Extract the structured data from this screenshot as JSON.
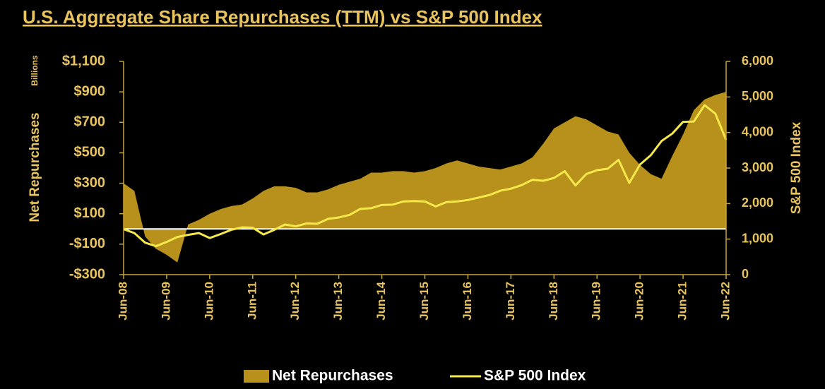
{
  "chart_data": {
    "type": "line",
    "title": "U.S. Aggregate Share Repurchases (TTM) vs S&P 500 Index",
    "ylabel": "Net Repurchases",
    "yunit": "Billions",
    "y2label": "S&P 500 Index",
    "categories": [
      "Jun-08",
      null,
      null,
      null,
      "Jun-09",
      null,
      null,
      null,
      "Jun-10",
      null,
      null,
      null,
      "Jun-11",
      null,
      null,
      null,
      "Jun-12",
      null,
      null,
      null,
      "Jun-13",
      null,
      null,
      null,
      "Jun-14",
      null,
      null,
      null,
      "Jun-15",
      null,
      null,
      null,
      "Jun-16",
      null,
      null,
      null,
      "Jun-17",
      null,
      null,
      null,
      "Jun-18",
      null,
      null,
      null,
      "Jun-19",
      null,
      null,
      null,
      "Jun-20",
      null,
      null,
      null,
      "Jun-21",
      null,
      null,
      null,
      "Jun-22"
    ],
    "series": [
      {
        "name": "Net Repurchases",
        "type": "area",
        "color": "#b8901c",
        "values": [
          300,
          250,
          -50,
          -130,
          -170,
          -220,
          30,
          60,
          100,
          130,
          150,
          160,
          200,
          250,
          280,
          280,
          270,
          240,
          240,
          260,
          290,
          310,
          330,
          370,
          370,
          380,
          380,
          370,
          380,
          400,
          430,
          450,
          430,
          410,
          400,
          390,
          410,
          430,
          470,
          560,
          660,
          700,
          740,
          720,
          680,
          640,
          620,
          500,
          420,
          360,
          330,
          480,
          620,
          780,
          850,
          880,
          900
        ]
      },
      {
        "name": "S&P 500 Index",
        "type": "line",
        "axis": "y2",
        "color": "#f5e84a",
        "values": [
          1280,
          1170,
          900,
          800,
          920,
          1060,
          1120,
          1170,
          1030,
          1140,
          1260,
          1330,
          1320,
          1130,
          1260,
          1410,
          1360,
          1440,
          1430,
          1570,
          1610,
          1680,
          1850,
          1870,
          1960,
          1970,
          2060,
          2070,
          2060,
          1920,
          2040,
          2060,
          2100,
          2170,
          2240,
          2360,
          2420,
          2520,
          2670,
          2640,
          2720,
          2910,
          2510,
          2830,
          2940,
          2980,
          3230,
          2580,
          3100,
          3360,
          3760,
          3970,
          4300,
          4310,
          4770,
          4530,
          3790
        ]
      }
    ],
    "ylim": [
      -300,
      1100
    ],
    "yticks": [
      {
        "value": 1100,
        "label": "$1,100"
      },
      {
        "value": 900,
        "label": "$900"
      },
      {
        "value": 700,
        "label": "$700"
      },
      {
        "value": 500,
        "label": "$500"
      },
      {
        "value": 300,
        "label": "$300"
      },
      {
        "value": 100,
        "label": "$100"
      },
      {
        "value": -100,
        "label": "-$100"
      },
      {
        "value": -300,
        "label": "-$300"
      }
    ],
    "y2lim": [
      0,
      6000
    ],
    "y2ticks": [
      {
        "value": 6000,
        "label": "6,000"
      },
      {
        "value": 5000,
        "label": "5,000"
      },
      {
        "value": 4000,
        "label": "4,000"
      },
      {
        "value": 3000,
        "label": "3,000"
      },
      {
        "value": 2000,
        "label": "2,000"
      },
      {
        "value": 1000,
        "label": "1,000"
      },
      0
    ],
    "legend": "bottom"
  }
}
